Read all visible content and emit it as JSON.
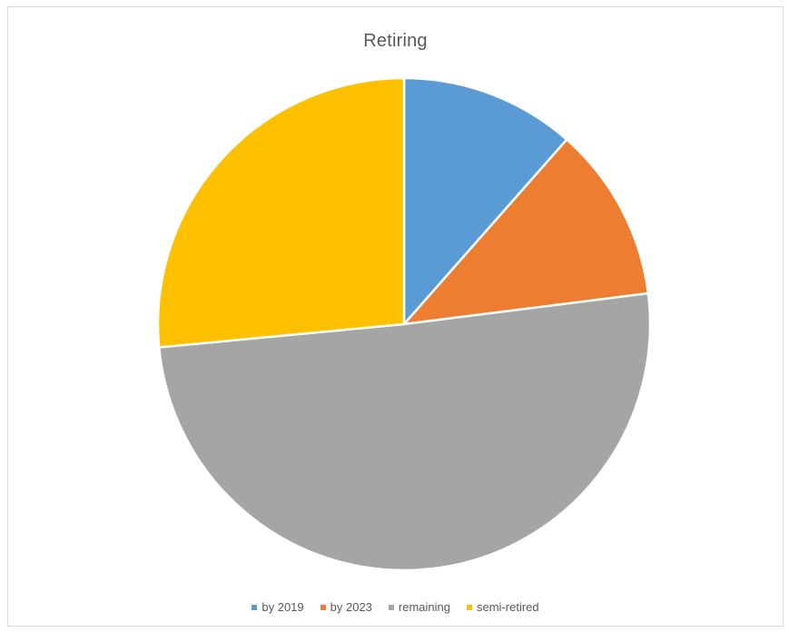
{
  "chart_data": {
    "type": "pie",
    "title": "Retiring",
    "categories": [
      "by 2019",
      "by 2023",
      "remaining",
      "semi-retired"
    ],
    "values": [
      11.5,
      11.5,
      50.5,
      26.5
    ],
    "unit": "",
    "colors": [
      "#5b9bd5",
      "#ed7d31",
      "#a5a5a5",
      "#ffc000"
    ],
    "start_angle_deg": 0,
    "direction": "clockwise",
    "legend_position": "bottom"
  }
}
